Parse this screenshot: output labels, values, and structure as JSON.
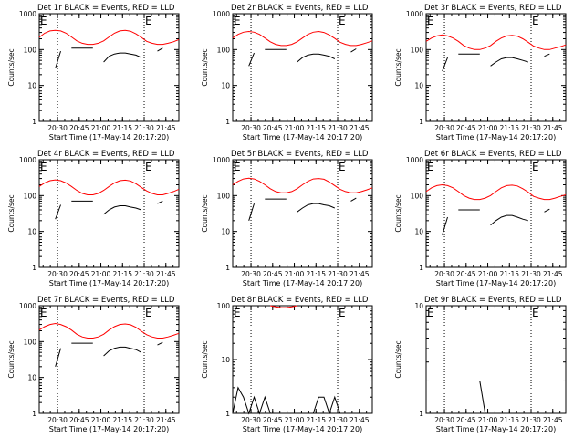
{
  "chart_data": [
    {
      "type": "line",
      "title": "Det 1r BLACK = Events, RED = LLD",
      "xlabel": "Start Time (17-May-14 20:17:20)",
      "ylabel": "Counts/sec",
      "x_ticks": [
        "20:30",
        "20:45",
        "21:00",
        "21:15",
        "21:30",
        "21:45"
      ],
      "y_ticks": [
        "1",
        "10",
        "100",
        "1000"
      ],
      "ylim": [
        1,
        1000
      ],
      "y_scale": "log",
      "markers": [
        {
          "time": "20:30",
          "label": ""
        },
        {
          "time": "21:30",
          "label": "E"
        }
      ],
      "corner_label": "E",
      "series": [
        {
          "color": "#ff0000",
          "values": [
            220,
            285,
            330,
            345,
            330,
            285,
            225,
            175,
            150,
            140,
            140,
            150,
            175,
            225,
            285,
            330,
            345,
            325,
            275,
            220,
            170,
            150,
            140,
            140,
            150,
            165,
            190
          ]
        },
        {
          "color": "#000000",
          "values": [
            null,
            null,
            null,
            30,
            90,
            null,
            110,
            110,
            110,
            110,
            110,
            null,
            45,
            65,
            75,
            80,
            80,
            75,
            70,
            60,
            null,
            null,
            90,
            110,
            null,
            null,
            null
          ]
        }
      ]
    },
    {
      "type": "line",
      "title": "Det 2r BLACK = Events, RED = LLD",
      "xlabel": "Start Time (17-May-14 20:17:20)",
      "ylabel": "Counts/sec",
      "x_ticks": [
        "20:30",
        "20:45",
        "21:00",
        "21:15",
        "21:30",
        "21:45"
      ],
      "y_ticks": [
        "1",
        "10",
        "100",
        "1000"
      ],
      "ylim": [
        1,
        1000
      ],
      "y_scale": "log",
      "markers": [
        {
          "time": "20:30",
          "label": ""
        },
        {
          "time": "21:30",
          "label": "E"
        }
      ],
      "corner_label": "E",
      "series": [
        {
          "color": "#ff0000",
          "values": [
            210,
            265,
            305,
            320,
            305,
            265,
            210,
            165,
            140,
            130,
            130,
            140,
            165,
            210,
            265,
            305,
            320,
            300,
            255,
            205,
            160,
            140,
            130,
            130,
            140,
            155,
            175
          ]
        },
        {
          "color": "#000000",
          "values": [
            null,
            null,
            null,
            35,
            80,
            null,
            100,
            100,
            100,
            100,
            100,
            null,
            45,
            60,
            70,
            75,
            75,
            70,
            65,
            55,
            null,
            null,
            85,
            105,
            null,
            null,
            null
          ]
        }
      ]
    },
    {
      "type": "line",
      "title": "Det 3r BLACK = Events, RED = LLD",
      "xlabel": "Start Time (17-May-14 20:17:20)",
      "ylabel": "Counts/sec",
      "x_ticks": [
        "20:30",
        "20:45",
        "21:00",
        "21:15",
        "21:30",
        "21:45"
      ],
      "y_ticks": [
        "1",
        "10",
        "100",
        "1000"
      ],
      "ylim": [
        1,
        1000
      ],
      "y_scale": "log",
      "markers": [
        {
          "time": "20:30",
          "label": ""
        },
        {
          "time": "21:30",
          "label": "E"
        }
      ],
      "corner_label": "E",
      "series": [
        {
          "color": "#ff0000",
          "values": [
            170,
            210,
            240,
            255,
            240,
            210,
            170,
            130,
            110,
            100,
            100,
            110,
            130,
            170,
            210,
            240,
            250,
            235,
            200,
            160,
            125,
            110,
            100,
            100,
            110,
            120,
            135
          ]
        },
        {
          "color": "#000000",
          "values": [
            null,
            null,
            null,
            25,
            60,
            null,
            75,
            75,
            75,
            75,
            75,
            null,
            35,
            45,
            55,
            60,
            60,
            55,
            50,
            45,
            null,
            null,
            65,
            75,
            null,
            null,
            null
          ]
        }
      ]
    },
    {
      "type": "line",
      "title": "Det 4r BLACK = Events, RED = LLD",
      "xlabel": "Start Time (17-May-14 20:17:20)",
      "ylabel": "Counts/sec",
      "x_ticks": [
        "20:30",
        "20:45",
        "21:00",
        "21:15",
        "21:30",
        "21:45"
      ],
      "y_ticks": [
        "1",
        "10",
        "100",
        "1000"
      ],
      "ylim": [
        1,
        1000
      ],
      "y_scale": "log",
      "markers": [
        {
          "time": "20:30",
          "label": ""
        },
        {
          "time": "21:30",
          "label": "E"
        }
      ],
      "corner_label": "E",
      "series": [
        {
          "color": "#ff0000",
          "values": [
            180,
            225,
            260,
            275,
            260,
            225,
            180,
            140,
            115,
            105,
            105,
            115,
            140,
            180,
            225,
            260,
            270,
            255,
            215,
            170,
            135,
            115,
            105,
            105,
            115,
            130,
            150
          ]
        },
        {
          "color": "#000000",
          "values": [
            null,
            null,
            null,
            22,
            55,
            null,
            70,
            70,
            70,
            70,
            70,
            null,
            30,
            40,
            48,
            52,
            52,
            48,
            45,
            40,
            null,
            null,
            60,
            70,
            null,
            null,
            null
          ]
        }
      ]
    },
    {
      "type": "line",
      "title": "Det 5r BLACK = Events, RED = LLD",
      "xlabel": "Start Time (17-May-14 20:17:20)",
      "ylabel": "Counts/sec",
      "x_ticks": [
        "20:30",
        "20:45",
        "21:00",
        "21:15",
        "21:30",
        "21:45"
      ],
      "y_ticks": [
        "1",
        "10",
        "100",
        "1000"
      ],
      "ylim": [
        1,
        1000
      ],
      "y_scale": "log",
      "markers": [
        {
          "time": "20:30",
          "label": ""
        },
        {
          "time": "21:30",
          "label": "E"
        }
      ],
      "corner_label": "E",
      "series": [
        {
          "color": "#ff0000",
          "values": [
            200,
            250,
            290,
            305,
            290,
            250,
            200,
            155,
            130,
            120,
            120,
            130,
            155,
            200,
            250,
            290,
            300,
            285,
            240,
            190,
            150,
            130,
            120,
            120,
            130,
            145,
            165
          ]
        },
        {
          "color": "#000000",
          "values": [
            null,
            null,
            null,
            20,
            60,
            null,
            80,
            80,
            80,
            80,
            80,
            null,
            35,
            45,
            55,
            60,
            60,
            55,
            52,
            45,
            null,
            null,
            70,
            85,
            null,
            null,
            null
          ]
        }
      ]
    },
    {
      "type": "line",
      "title": "Det 6r BLACK = Events, RED = LLD",
      "xlabel": "Start Time (17-May-14 20:17:20)",
      "ylabel": "Counts/sec",
      "x_ticks": [
        "20:30",
        "20:45",
        "21:00",
        "21:15",
        "21:30",
        "21:45"
      ],
      "y_ticks": [
        "1",
        "10",
        "100",
        "1000"
      ],
      "ylim": [
        1,
        1000
      ],
      "y_scale": "log",
      "markers": [
        {
          "time": "20:30",
          "label": ""
        },
        {
          "time": "21:30",
          "label": "E"
        }
      ],
      "corner_label": "E",
      "series": [
        {
          "color": "#ff0000",
          "values": [
            130,
            165,
            190,
            200,
            190,
            165,
            130,
            100,
            85,
            78,
            78,
            85,
            100,
            130,
            165,
            190,
            195,
            185,
            155,
            125,
            95,
            85,
            78,
            78,
            85,
            95,
            105
          ]
        },
        {
          "color": "#000000",
          "values": [
            null,
            null,
            null,
            8,
            25,
            null,
            40,
            40,
            40,
            40,
            40,
            null,
            15,
            20,
            25,
            28,
            28,
            25,
            22,
            20,
            null,
            null,
            35,
            42,
            null,
            null,
            null
          ]
        }
      ]
    },
    {
      "type": "line",
      "title": "Det 7r BLACK = Events, RED = LLD",
      "xlabel": "Start Time (17-May-14 20:17:20)",
      "ylabel": "Counts/sec",
      "x_ticks": [
        "20:30",
        "20:45",
        "21:00",
        "21:15",
        "21:30",
        "21:45"
      ],
      "y_ticks": [
        "1",
        "10",
        "100",
        "1000"
      ],
      "ylim": [
        1,
        1000
      ],
      "y_scale": "log",
      "markers": [
        {
          "time": "20:30",
          "label": ""
        },
        {
          "time": "21:30",
          "label": "E"
        }
      ],
      "corner_label": "E",
      "series": [
        {
          "color": "#ff0000",
          "values": [
            210,
            260,
            300,
            320,
            300,
            260,
            210,
            160,
            135,
            125,
            125,
            135,
            160,
            210,
            260,
            300,
            310,
            295,
            250,
            195,
            155,
            135,
            125,
            125,
            135,
            150,
            170
          ]
        },
        {
          "color": "#000000",
          "values": [
            null,
            null,
            null,
            20,
            65,
            null,
            90,
            90,
            90,
            90,
            90,
            null,
            40,
            55,
            65,
            70,
            70,
            65,
            60,
            50,
            null,
            null,
            80,
            95,
            null,
            null,
            null
          ]
        }
      ]
    },
    {
      "type": "line",
      "title": "Det 8r BLACK = Events, RED = LLD",
      "xlabel": "Start Time (17-May-14 20:17:20)",
      "ylabel": "Counts/sec",
      "x_ticks": [
        "20:30",
        "20:45",
        "21:00",
        "21:15",
        "21:30",
        "21:45"
      ],
      "y_ticks": [
        "1",
        "10",
        "100"
      ],
      "ylim": [
        1,
        100
      ],
      "y_scale": "log",
      "markers": [
        {
          "time": "20:30",
          "label": ""
        },
        {
          "time": "21:30",
          "label": "E"
        }
      ],
      "corner_label": "E",
      "series": [
        {
          "color": "#ff0000",
          "values": [
            null,
            null,
            null,
            null,
            null,
            null,
            null,
            100,
            95,
            92,
            92,
            95,
            100,
            null,
            null,
            null,
            null,
            null,
            null,
            null,
            null,
            null,
            null,
            null,
            null,
            null,
            null
          ]
        },
        {
          "color": "#000000",
          "values": [
            1,
            3,
            2,
            1,
            2,
            1,
            2,
            1,
            1,
            1,
            1,
            1,
            1,
            1,
            1,
            1,
            2,
            2,
            1,
            2,
            1,
            1,
            1,
            1,
            1,
            1,
            1
          ]
        }
      ]
    },
    {
      "type": "line",
      "title": "Det 9r BLACK = Events, RED = LLD",
      "xlabel": "Start Time (17-May-14 20:17:20)",
      "ylabel": "Counts/sec",
      "x_ticks": [
        "20:30",
        "20:45",
        "21:00",
        "21:15",
        "21:30",
        "21:45"
      ],
      "y_ticks": [
        "1",
        "10"
      ],
      "ylim": [
        1,
        10
      ],
      "y_scale": "log",
      "markers": [
        {
          "time": "20:30",
          "label": ""
        },
        {
          "time": "21:30",
          "label": "E"
        }
      ],
      "corner_label": "E",
      "series": [
        {
          "color": "#ff0000",
          "values": []
        },
        {
          "color": "#000000",
          "values": [
            null,
            null,
            null,
            null,
            null,
            null,
            null,
            null,
            null,
            null,
            2,
            1,
            null,
            null,
            null,
            null,
            null,
            null,
            null,
            null,
            null,
            null,
            null,
            null,
            null,
            null,
            null
          ]
        }
      ]
    }
  ]
}
